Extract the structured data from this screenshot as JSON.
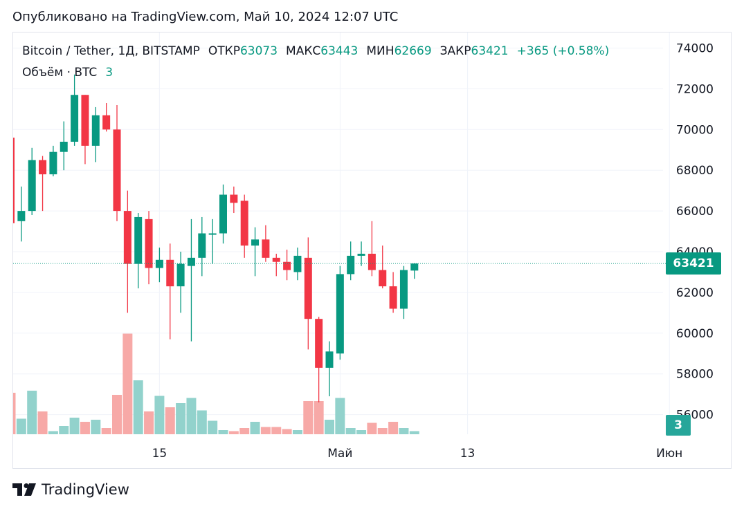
{
  "header": {
    "published": "Опубликовано на TradingView.com, Май 10, 2024 12:07 UTC"
  },
  "legend": {
    "symbol": "Bitcoin / Tether, 1Д, BITSTAMP",
    "open_label": "ОТКР",
    "open": "63073",
    "high_label": "МАКС",
    "high": "63443",
    "low_label": "МИН",
    "low": "62669",
    "close_label": "ЗАКР",
    "close": "63421",
    "change": "+365 (+0.58%)",
    "volume_label": "Объём · BTC",
    "volume": "3"
  },
  "price_tag": "63421",
  "volume_tag": "3",
  "footer": {
    "brand": "TradingView"
  },
  "colors": {
    "up": "#089981",
    "down": "#f23645",
    "up_volume": "#92d2cc",
    "down_volume": "#f7a9a7",
    "grid": "#f0f3fa"
  },
  "chart_data": {
    "type": "candlestick",
    "y_range": [
      55000,
      74500
    ],
    "y_ticks": [
      56000,
      58000,
      60000,
      62000,
      64000,
      66000,
      68000,
      70000,
      72000,
      74000
    ],
    "x_ticks": [
      {
        "label": "15",
        "day": 14
      },
      {
        "label": "Май",
        "day": 31
      },
      {
        "label": "13",
        "day": 43
      },
      {
        "label": "Июн",
        "day": 62
      }
    ],
    "current_price": 63421,
    "candles": [
      {
        "o": 69600,
        "h": 69700,
        "l": 65400,
        "c": 65400,
        "v": 40
      },
      {
        "o": 65500,
        "h": 67200,
        "l": 64500,
        "c": 66000,
        "v": 15
      },
      {
        "o": 66000,
        "h": 69100,
        "l": 65800,
        "c": 68500,
        "v": 42
      },
      {
        "o": 68500,
        "h": 68700,
        "l": 66000,
        "c": 67800,
        "v": 22
      },
      {
        "o": 67800,
        "h": 69200,
        "l": 67700,
        "c": 68900,
        "v": 3
      },
      {
        "o": 68900,
        "h": 70400,
        "l": 68000,
        "c": 69400,
        "v": 8
      },
      {
        "o": 69400,
        "h": 72700,
        "l": 69200,
        "c": 71700,
        "v": 16
      },
      {
        "o": 71700,
        "h": 71700,
        "l": 68300,
        "c": 69200,
        "v": 12
      },
      {
        "o": 69200,
        "h": 71100,
        "l": 68400,
        "c": 70700,
        "v": 14
      },
      {
        "o": 70700,
        "h": 71300,
        "l": 69900,
        "c": 70000,
        "v": 6
      },
      {
        "o": 70000,
        "h": 71200,
        "l": 65500,
        "c": 66000,
        "v": 38
      },
      {
        "o": 66000,
        "h": 67000,
        "l": 61000,
        "c": 63400,
        "v": 97
      },
      {
        "o": 63400,
        "h": 65900,
        "l": 62200,
        "c": 65700,
        "v": 52
      },
      {
        "o": 65600,
        "h": 66000,
        "l": 62400,
        "c": 63200,
        "v": 22
      },
      {
        "o": 63200,
        "h": 64200,
        "l": 62500,
        "c": 63600,
        "v": 37
      },
      {
        "o": 63600,
        "h": 64400,
        "l": 59700,
        "c": 62300,
        "v": 26
      },
      {
        "o": 62300,
        "h": 64000,
        "l": 61000,
        "c": 63400,
        "v": 30
      },
      {
        "o": 63300,
        "h": 65600,
        "l": 59600,
        "c": 63700,
        "v": 35
      },
      {
        "o": 63700,
        "h": 65700,
        "l": 62800,
        "c": 64900,
        "v": 23
      },
      {
        "o": 64900,
        "h": 65600,
        "l": 63400,
        "c": 64900,
        "v": 13
      },
      {
        "o": 64900,
        "h": 67300,
        "l": 64400,
        "c": 66800,
        "v": 4
      },
      {
        "o": 66800,
        "h": 67200,
        "l": 65900,
        "c": 66400,
        "v": 3
      },
      {
        "o": 66500,
        "h": 66800,
        "l": 63700,
        "c": 64300,
        "v": 6
      },
      {
        "o": 64300,
        "h": 65200,
        "l": 62800,
        "c": 64600,
        "v": 12
      },
      {
        "o": 64600,
        "h": 65300,
        "l": 63500,
        "c": 63700,
        "v": 7
      },
      {
        "o": 63700,
        "h": 63900,
        "l": 62800,
        "c": 63500,
        "v": 7
      },
      {
        "o": 63500,
        "h": 64100,
        "l": 62600,
        "c": 63100,
        "v": 5
      },
      {
        "o": 63000,
        "h": 64200,
        "l": 62600,
        "c": 63800,
        "v": 4
      },
      {
        "o": 63700,
        "h": 64700,
        "l": 59200,
        "c": 60700,
        "v": 32
      },
      {
        "o": 60700,
        "h": 60800,
        "l": 56600,
        "c": 58300,
        "v": 32
      },
      {
        "o": 58300,
        "h": 59600,
        "l": 56900,
        "c": 59100,
        "v": 14
      },
      {
        "o": 59000,
        "h": 63300,
        "l": 58700,
        "c": 62900,
        "v": 35
      },
      {
        "o": 62900,
        "h": 64500,
        "l": 62600,
        "c": 63800,
        "v": 6
      },
      {
        "o": 63800,
        "h": 64500,
        "l": 63300,
        "c": 63900,
        "v": 4
      },
      {
        "o": 63900,
        "h": 65500,
        "l": 62800,
        "c": 63100,
        "v": 11
      },
      {
        "o": 63100,
        "h": 64300,
        "l": 62200,
        "c": 62300,
        "v": 6
      },
      {
        "o": 62300,
        "h": 63000,
        "l": 61000,
        "c": 61200,
        "v": 12
      },
      {
        "o": 61200,
        "h": 63300,
        "l": 60700,
        "c": 63100,
        "v": 6
      },
      {
        "o": 63073,
        "h": 63443,
        "l": 62669,
        "c": 63421,
        "v": 3
      }
    ]
  }
}
